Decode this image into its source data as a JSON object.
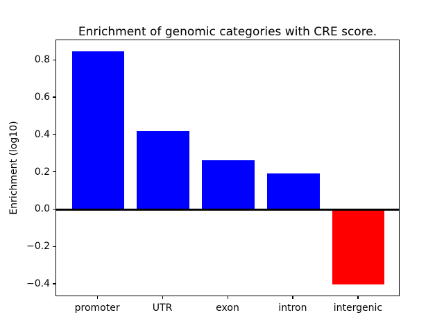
{
  "figure": {
    "background": "#ffffff"
  },
  "chart_data": {
    "type": "bar",
    "title": "Enrichment of genomic categories with CRE score.",
    "ylabel": "Enrichment (log10)",
    "xlabel": "",
    "categories": [
      "promoter",
      "UTR",
      "exon",
      "intron",
      "intergenic"
    ],
    "values": [
      0.85,
      0.42,
      0.265,
      0.195,
      -0.4
    ],
    "bar_colors": [
      "#0000ff",
      "#0000ff",
      "#0000ff",
      "#0000ff",
      "#ff0000"
    ],
    "positive_color": "#0000ff",
    "negative_color": "#ff0000",
    "axis_color": "#000000",
    "ylim": [
      -0.467,
      0.908
    ],
    "xlim": [
      -0.64,
      4.64
    ],
    "bar_width": 0.8,
    "yticks": {
      "values": [
        0.8,
        0.6,
        0.4,
        0.2,
        0.0,
        -0.2,
        -0.4
      ],
      "labels": [
        "0.8",
        "0.6",
        "0.4",
        "0.2",
        "0.0",
        "−0.2",
        "−0.4"
      ]
    },
    "zero_line": true,
    "grid": false,
    "legend": "none"
  }
}
